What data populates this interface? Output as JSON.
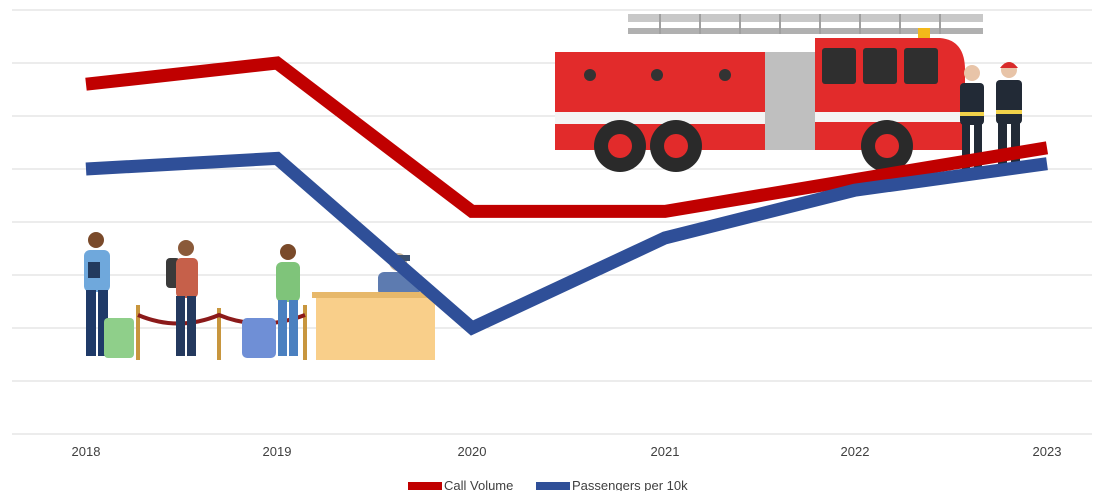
{
  "chart_data": {
    "type": "line",
    "categories": [
      "2018",
      "2019",
      "2020",
      "2021",
      "2022",
      "2023"
    ],
    "series": [
      {
        "name": "Call Volume",
        "color": "#c00000",
        "values": [
          6.6,
          7.0,
          4.2,
          4.2,
          4.8,
          5.4
        ]
      },
      {
        "name": "Passengers per 10k",
        "color": "#2f4f98",
        "values": [
          5.0,
          5.2,
          2.0,
          3.7,
          4.6,
          5.1
        ]
      }
    ],
    "ylim": [
      0,
      8
    ],
    "grid": true,
    "legend_position": "bottom",
    "illustrations": [
      "fire-truck",
      "firefighters",
      "airport-check-in-queue"
    ]
  }
}
